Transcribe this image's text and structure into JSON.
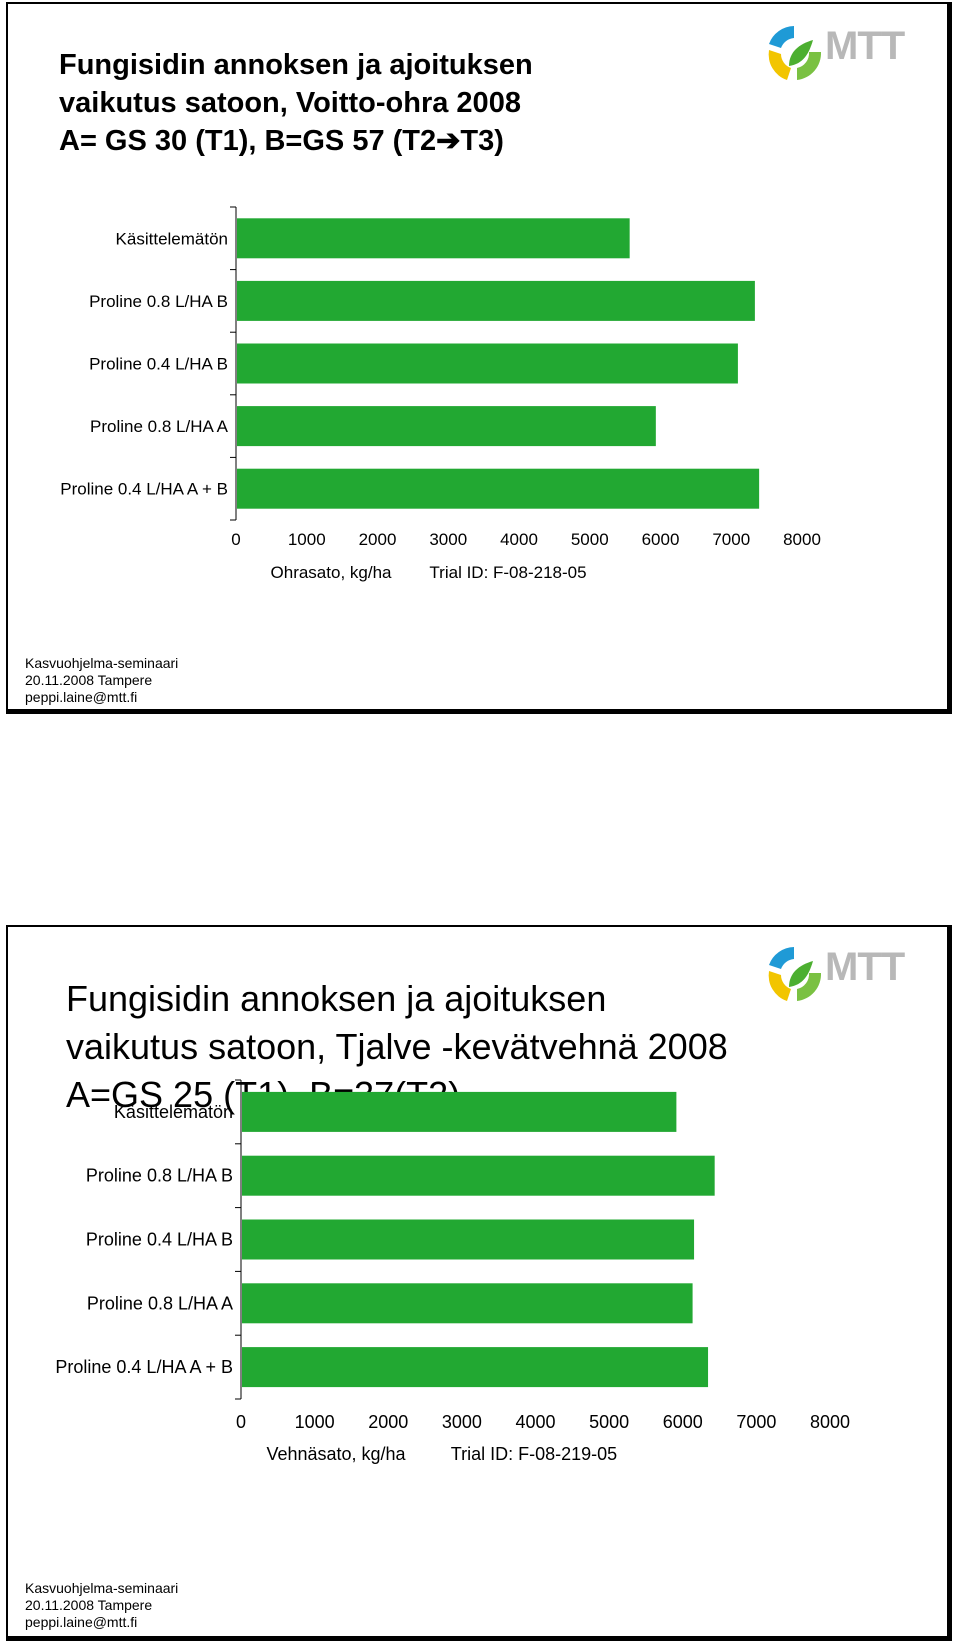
{
  "slides": [
    {
      "title_lines": [
        "Fungisidin annoksen ja ajoituksen",
        "vaikutus satoon, Voitto-ohra 2008",
        "A= GS 30 (T1), B=GS 57 (T2➔T3)"
      ],
      "logo": {
        "text": "MTT",
        "icon": "mtt-logo-icon"
      },
      "footer": [
        "Kasvuohjelma-seminaari",
        "20.11.2008 Tampere",
        "peppi.laine@mtt.fi"
      ]
    },
    {
      "title_lines": [
        "Fungisidin annoksen ja ajoituksen",
        "vaikutus satoon, Tjalve -kevätvehnä 2008",
        "A=GS 25 (T1), B=37(T2)"
      ],
      "logo": {
        "text": "MTT",
        "icon": "mtt-logo-icon"
      },
      "footer": [
        "Kasvuohjelma-seminaari",
        "20.11.2008 Tampere",
        "peppi.laine@mtt.fi"
      ]
    }
  ],
  "colors": {
    "bar": "#22a832",
    "axis": "#000000"
  },
  "chart_data": [
    {
      "type": "bar",
      "orientation": "horizontal",
      "categories": [
        "Käsittelemätön",
        "Proline 0.8 L/HA B",
        "Proline 0.4 L/HA B",
        "Proline 0.8 L/HA A",
        "Proline 0.4 L/HA A + B"
      ],
      "values": [
        5550,
        7320,
        7080,
        5920,
        7380
      ],
      "xlim": [
        0,
        8000
      ],
      "xticks": [
        "0",
        "1000",
        "2000",
        "3000",
        "4000",
        "5000",
        "6000",
        "7000",
        "8000"
      ],
      "xlabel": "Ohrasato, kg/ha",
      "note": "Trial ID: F-08-218-05",
      "grid": false
    },
    {
      "type": "bar",
      "orientation": "horizontal",
      "categories": [
        "Käsittelemätön",
        "Proline 0.8 L/HA B",
        "Proline 0.4 L/HA B",
        "Proline 0.8 L/HA A",
        "Proline 0.4 L/HA A + B"
      ],
      "values": [
        5900,
        6420,
        6140,
        6120,
        6330
      ],
      "xlim": [
        0,
        8000
      ],
      "xticks": [
        "0",
        "1000",
        "2000",
        "3000",
        "4000",
        "5000",
        "6000",
        "7000",
        "8000"
      ],
      "xlabel": "Vehnäsato, kg/ha",
      "note": "Trial ID: F-08-219-05",
      "grid": false
    }
  ]
}
